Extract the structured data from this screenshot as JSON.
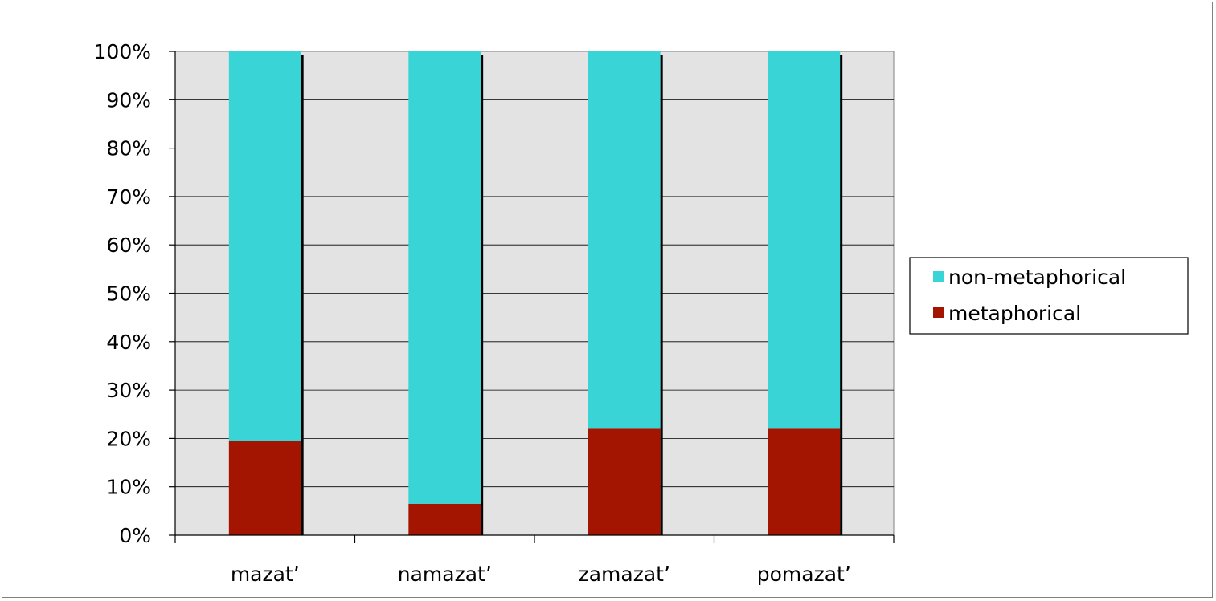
{
  "chart_data": {
    "type": "bar",
    "stacked": true,
    "percent_stacked": true,
    "categories": [
      "mazat’",
      "namazat’",
      "zamazat’",
      "pomazat’"
    ],
    "series": [
      {
        "name": "metaphorical",
        "values": [
          19.5,
          6.5,
          22,
          22
        ],
        "color": "#a31500"
      },
      {
        "name": "non-metaphorical",
        "values": [
          80.5,
          93.5,
          78,
          78
        ],
        "color": "#38d4d6"
      }
    ],
    "ylim": [
      0,
      100
    ],
    "y_ticks": [
      "0%",
      "10%",
      "20%",
      "30%",
      "40%",
      "50%",
      "60%",
      "70%",
      "80%",
      "90%",
      "100%"
    ],
    "grid": true,
    "plot_background": "#e3e3e3",
    "legend": {
      "placement": "right",
      "entries": [
        {
          "label": "non-metaphorical",
          "color": "#38d4d6"
        },
        {
          "label": "metaphorical",
          "color": "#a31500"
        }
      ]
    }
  }
}
